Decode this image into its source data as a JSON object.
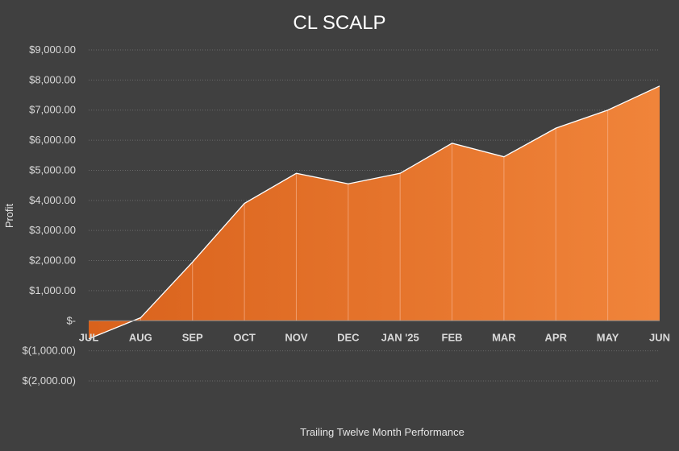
{
  "chart_data": {
    "type": "area",
    "title": "CL SCALP",
    "xlabel": "Trailing Twelve Month Performance",
    "ylabel": "Profit",
    "categories": [
      "JUL",
      "AUG",
      "SEP",
      "OCT",
      "NOV",
      "DEC",
      "JAN '25",
      "FEB",
      "MAR",
      "APR",
      "MAY",
      "JUN"
    ],
    "series": [
      {
        "values": [
          -600,
          100,
          1950,
          3900,
          4900,
          4550,
          4900,
          5900,
          5450,
          6400,
          7000,
          7800
        ]
      }
    ],
    "ylim": [
      -2000,
      9000
    ],
    "yticks": [
      9000,
      8000,
      7000,
      6000,
      5000,
      4000,
      3000,
      2000,
      1000,
      0,
      -1000,
      -2000
    ],
    "ytick_labels": [
      "$9,000.00",
      "$8,000.00",
      "$7,000.00",
      "$6,000.00",
      "$5,000.00",
      "$4,000.00",
      "$3,000.00",
      "$2,000.00",
      "$1,000.00",
      "$-",
      "$(1,000.00)",
      "$(2,000.00)"
    ],
    "grid": true,
    "legend": "none",
    "colors": {
      "background": "#404040",
      "fill_left": "#d9621c",
      "fill_right": "#f0843a",
      "line": "#ffffff",
      "grid": "#6a6a6a",
      "text": "#d9d9d9"
    }
  }
}
